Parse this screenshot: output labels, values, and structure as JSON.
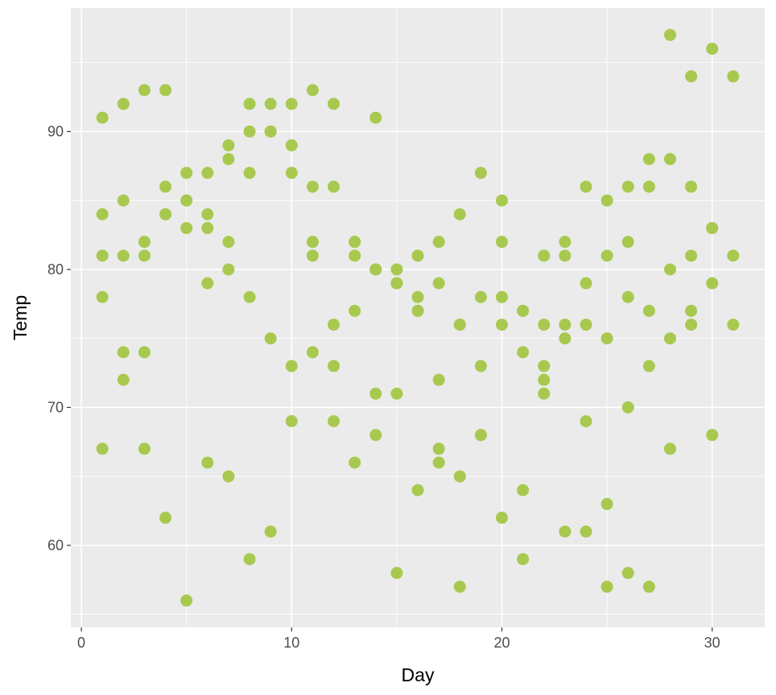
{
  "chart_data": {
    "type": "scatter",
    "title": "",
    "xlabel": "Day",
    "ylabel": "Temp",
    "xlim": [
      -0.5,
      32.5
    ],
    "ylim": [
      54.05,
      98.95
    ],
    "xticks": [
      0,
      10,
      20,
      30
    ],
    "yticks": [
      60,
      70,
      80,
      90
    ],
    "grid": true,
    "point_color": "#A8C94F",
    "panel_color": "#EBEBEB",
    "series": [
      {
        "x": [
          1,
          2,
          3,
          4,
          5,
          6,
          7,
          8,
          9,
          10,
          11,
          12,
          13,
          14,
          15,
          16,
          17,
          18,
          19,
          20,
          21,
          22,
          23,
          24,
          25,
          26,
          27,
          28,
          29,
          30,
          31
        ],
        "y": [
          67,
          72,
          74,
          62,
          56,
          66,
          65,
          59,
          61,
          69,
          74,
          69,
          66,
          68,
          58,
          64,
          66,
          57,
          68,
          62,
          59,
          73,
          61,
          61,
          57,
          58,
          57,
          67,
          81,
          79,
          76
        ]
      },
      {
        "x": [
          1,
          2,
          3,
          4,
          5,
          6,
          7,
          8,
          9,
          10,
          11,
          12,
          13,
          14,
          15,
          16,
          17,
          18,
          19,
          20,
          21,
          22,
          23,
          24,
          25,
          26,
          27,
          28,
          29,
          30
        ],
        "y": [
          78,
          74,
          67,
          84,
          85,
          79,
          82,
          87,
          90,
          87,
          93,
          92,
          82,
          80,
          79,
          77,
          72,
          65,
          73,
          76,
          77,
          76,
          76,
          76,
          75,
          78,
          73,
          80,
          77,
          83
        ]
      },
      {
        "x": [
          1,
          2,
          3,
          4,
          5,
          6,
          7,
          8,
          9,
          10,
          11,
          12,
          13,
          14,
          15,
          16,
          17,
          18,
          19,
          20,
          21,
          22,
          23,
          24,
          25,
          26,
          27,
          28,
          29,
          30,
          31
        ],
        "y": [
          84,
          85,
          81,
          84,
          83,
          83,
          88,
          92,
          92,
          89,
          82,
          73,
          81,
          91,
          80,
          81,
          82,
          84,
          87,
          85,
          74,
          81,
          82,
          86,
          85,
          82,
          86,
          88,
          86,
          83,
          81
        ]
      },
      {
        "x": [
          1,
          2,
          3,
          4,
          5,
          6,
          7,
          8,
          9,
          10,
          11,
          12,
          13,
          14,
          15,
          16,
          17,
          18,
          19,
          20,
          21,
          22,
          23,
          24,
          25,
          26,
          27,
          28,
          29,
          30,
          31
        ],
        "y": [
          81,
          81,
          82,
          86,
          85,
          87,
          89,
          90,
          90,
          92,
          86,
          86,
          82,
          80,
          79,
          77,
          79,
          76,
          78,
          78,
          77,
          72,
          75,
          79,
          81,
          86,
          88,
          97,
          94,
          96,
          94
        ]
      },
      {
        "x": [
          1,
          2,
          3,
          4,
          5,
          6,
          7,
          8,
          9,
          10,
          11,
          12,
          13,
          14,
          15,
          16,
          17,
          18,
          19,
          20,
          21,
          22,
          23,
          24,
          25,
          26,
          27,
          28,
          29,
          30
        ],
        "y": [
          91,
          92,
          93,
          93,
          87,
          84,
          80,
          78,
          75,
          73,
          81,
          76,
          77,
          71,
          71,
          78,
          67,
          76,
          68,
          82,
          64,
          71,
          81,
          69,
          63,
          70,
          77,
          75,
          76,
          68
        ]
      }
    ]
  }
}
